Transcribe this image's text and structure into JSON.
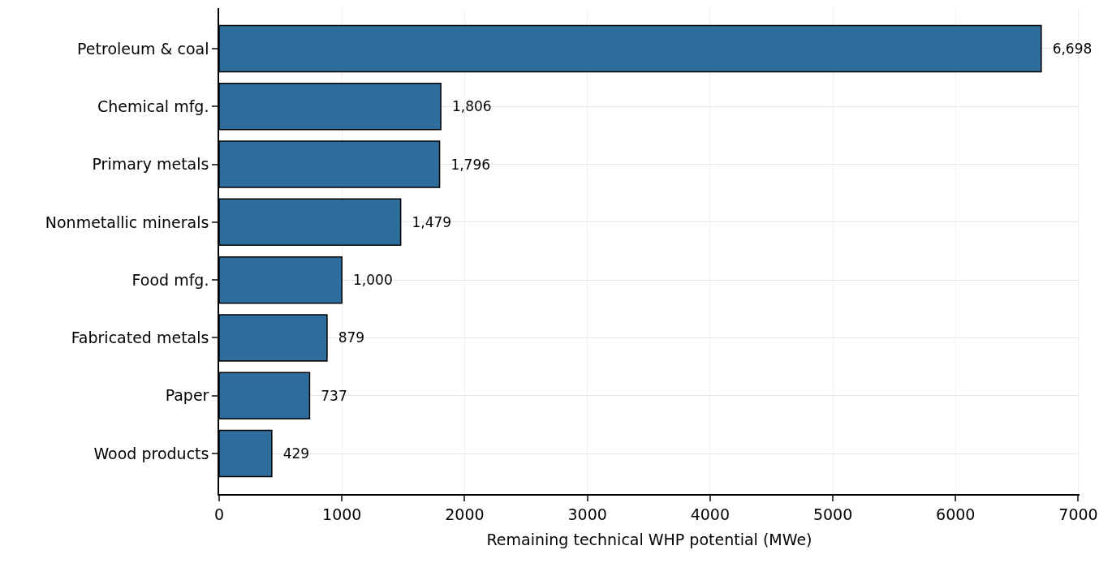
{
  "chart_data": {
    "type": "bar",
    "orientation": "horizontal",
    "xlabel": "Remaining technical WHP potential (MWe)",
    "categories": [
      "Petroleum & coal",
      "Chemical mfg.",
      "Primary metals",
      "Nonmetallic minerals",
      "Food mfg.",
      "Fabricated metals",
      "Paper",
      "Wood products"
    ],
    "values": [
      6698,
      1806,
      1796,
      1479,
      1000,
      879,
      737,
      429
    ],
    "value_labels": [
      "6,698",
      "1,806",
      "1,796",
      "1,479",
      "1,000",
      "879",
      "737",
      "429"
    ],
    "color": "#2e6d9c",
    "xlim": [
      0,
      7010
    ],
    "xticks": [
      0,
      1000,
      2000,
      3000,
      4000,
      5000,
      6000,
      7000
    ],
    "grid": true
  }
}
